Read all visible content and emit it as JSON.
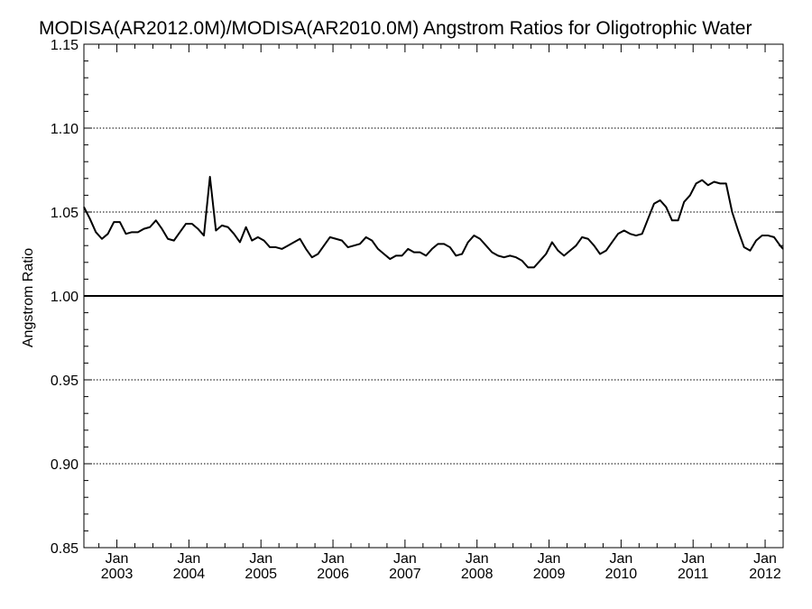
{
  "chart_data": {
    "type": "line",
    "title": "MODISA(AR2012.0M)/MODISA(AR2010.0M)  Angstrom Ratios for Oligotrophic Water",
    "ylabel": "Angstrom Ratio",
    "xlabel": "",
    "ylim": [
      0.85,
      1.15
    ],
    "yticks": [
      "0.85",
      "0.90",
      "0.95",
      "1.00",
      "1.05",
      "1.10",
      "1.15"
    ],
    "ytick_values": [
      0.85,
      0.9,
      0.95,
      1.0,
      1.05,
      1.1,
      1.15
    ],
    "dotted_gridlines": [
      0.9,
      0.95,
      1.05,
      1.1
    ],
    "reference_line": 1.0,
    "xlim": [
      2002.542,
      2012.25
    ],
    "xticks": [
      {
        "month": "Jan",
        "year": "2003",
        "value": 2003.0
      },
      {
        "month": "Jan",
        "year": "2004",
        "value": 2004.0
      },
      {
        "month": "Jan",
        "year": "2005",
        "value": 2005.0
      },
      {
        "month": "Jan",
        "year": "2006",
        "value": 2006.0
      },
      {
        "month": "Jan",
        "year": "2007",
        "value": 2007.0
      },
      {
        "month": "Jan",
        "year": "2008",
        "value": 2008.0
      },
      {
        "month": "Jan",
        "year": "2009",
        "value": 2009.0
      },
      {
        "month": "Jan",
        "year": "2010",
        "value": 2010.0
      },
      {
        "month": "Jan",
        "year": "2011",
        "value": 2011.0
      },
      {
        "month": "Jan",
        "year": "2012",
        "value": 2012.0
      }
    ],
    "series": [
      {
        "x": [
          2002.542,
          2002.625,
          2002.708,
          2002.792,
          2002.875,
          2002.958,
          2003.042,
          2003.125,
          2003.208,
          2003.292,
          2003.375,
          2003.458,
          2003.542,
          2003.625,
          2003.708,
          2003.792,
          2003.875,
          2003.958,
          2004.042,
          2004.125,
          2004.208,
          2004.292,
          2004.375,
          2004.458,
          2004.542,
          2004.625,
          2004.708,
          2004.792,
          2004.875,
          2004.958,
          2005.042,
          2005.125,
          2005.208,
          2005.292,
          2005.375,
          2005.458,
          2005.542,
          2005.625,
          2005.708,
          2005.792,
          2005.875,
          2005.958,
          2006.042,
          2006.125,
          2006.208,
          2006.292,
          2006.375,
          2006.458,
          2006.542,
          2006.625,
          2006.708,
          2006.792,
          2006.875,
          2006.958,
          2007.042,
          2007.125,
          2007.208,
          2007.292,
          2007.375,
          2007.458,
          2007.542,
          2007.625,
          2007.708,
          2007.792,
          2007.875,
          2007.958,
          2008.042,
          2008.125,
          2008.208,
          2008.292,
          2008.375,
          2008.458,
          2008.542,
          2008.625,
          2008.708,
          2008.792,
          2008.875,
          2008.958,
          2009.042,
          2009.125,
          2009.208,
          2009.292,
          2009.375,
          2009.458,
          2009.542,
          2009.625,
          2009.708,
          2009.792,
          2009.875,
          2009.958,
          2010.042,
          2010.125,
          2010.208,
          2010.292,
          2010.375,
          2010.458,
          2010.542,
          2010.625,
          2010.708,
          2010.792,
          2010.875,
          2010.958,
          2011.042,
          2011.125,
          2011.208,
          2011.292,
          2011.375,
          2011.458,
          2011.542,
          2011.625,
          2011.708,
          2011.792,
          2011.875,
          2011.958,
          2012.042,
          2012.125,
          2012.208,
          2012.25
        ],
        "values": [
          1.053,
          1.046,
          1.038,
          1.034,
          1.037,
          1.044,
          1.044,
          1.037,
          1.038,
          1.038,
          1.04,
          1.041,
          1.045,
          1.04,
          1.034,
          1.033,
          1.038,
          1.043,
          1.043,
          1.04,
          1.036,
          1.071,
          1.039,
          1.042,
          1.041,
          1.037,
          1.032,
          1.041,
          1.033,
          1.035,
          1.033,
          1.029,
          1.029,
          1.028,
          1.03,
          1.032,
          1.034,
          1.028,
          1.023,
          1.025,
          1.03,
          1.035,
          1.034,
          1.033,
          1.029,
          1.03,
          1.031,
          1.035,
          1.033,
          1.028,
          1.025,
          1.022,
          1.024,
          1.024,
          1.028,
          1.026,
          1.026,
          1.024,
          1.028,
          1.031,
          1.031,
          1.029,
          1.024,
          1.025,
          1.032,
          1.036,
          1.034,
          1.03,
          1.026,
          1.024,
          1.023,
          1.024,
          1.023,
          1.021,
          1.017,
          1.017,
          1.021,
          1.025,
          1.032,
          1.027,
          1.024,
          1.027,
          1.03,
          1.035,
          1.034,
          1.03,
          1.025,
          1.027,
          1.032,
          1.037,
          1.039,
          1.037,
          1.036,
          1.037,
          1.046,
          1.055,
          1.057,
          1.053,
          1.045,
          1.045,
          1.056,
          1.06,
          1.067,
          1.069,
          1.066,
          1.068,
          1.067,
          1.067,
          1.05,
          1.039,
          1.029,
          1.027,
          1.033,
          1.036,
          1.036,
          1.035,
          1.03,
          1.028
        ]
      }
    ],
    "grid": "dotted horizontal at major y ticks",
    "legend": "none"
  }
}
